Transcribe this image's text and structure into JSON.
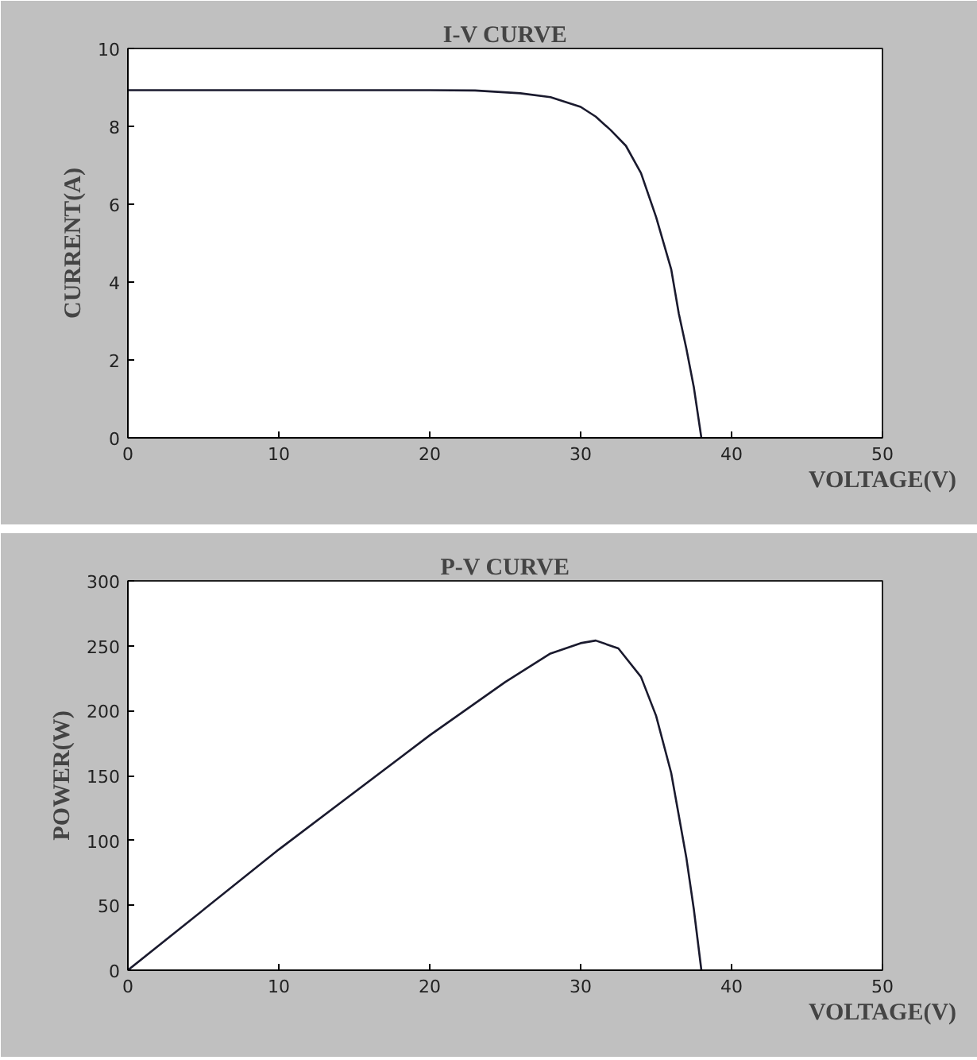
{
  "chart_data": [
    {
      "type": "line",
      "title": "I-V CURVE",
      "xlabel": "VOLTAGE(V)",
      "ylabel": "CURRENT(A)",
      "xlim": [
        0,
        50
      ],
      "ylim": [
        0,
        10
      ],
      "xticks": [
        0,
        10,
        20,
        30,
        40,
        50
      ],
      "yticks": [
        0,
        2,
        4,
        6,
        8,
        10
      ],
      "grid": false,
      "marker": "none",
      "line_style": "solid",
      "series": [
        {
          "color": "#1a1a2e",
          "x": [
            0,
            10,
            20,
            23,
            26,
            28,
            30,
            31,
            32,
            33,
            34,
            35,
            36,
            36.5,
            37,
            37.5,
            38
          ],
          "values": [
            8.93,
            8.93,
            8.93,
            8.92,
            8.85,
            8.75,
            8.5,
            8.25,
            7.9,
            7.5,
            6.8,
            5.67,
            4.33,
            3.2,
            2.3,
            1.3,
            0
          ]
        }
      ]
    },
    {
      "type": "line",
      "title": "P-V CURVE",
      "xlabel": "VOLTAGE(V)",
      "ylabel": "POWER(W)",
      "xlim": [
        0,
        50
      ],
      "ylim": [
        0,
        300
      ],
      "xticks": [
        0,
        10,
        20,
        30,
        40,
        50
      ],
      "yticks": [
        0,
        50,
        100,
        150,
        200,
        250,
        300
      ],
      "grid": false,
      "marker": "none",
      "line_style": "solid",
      "series": [
        {
          "color": "#1a1a2e",
          "x": [
            0,
            10,
            20,
            25,
            28,
            30,
            31,
            32.5,
            34,
            35,
            36,
            37,
            37.5,
            38
          ],
          "values": [
            0,
            93,
            181,
            222,
            244,
            252,
            254,
            248,
            226,
            196,
            152,
            87,
            47,
            0
          ]
        }
      ]
    }
  ]
}
